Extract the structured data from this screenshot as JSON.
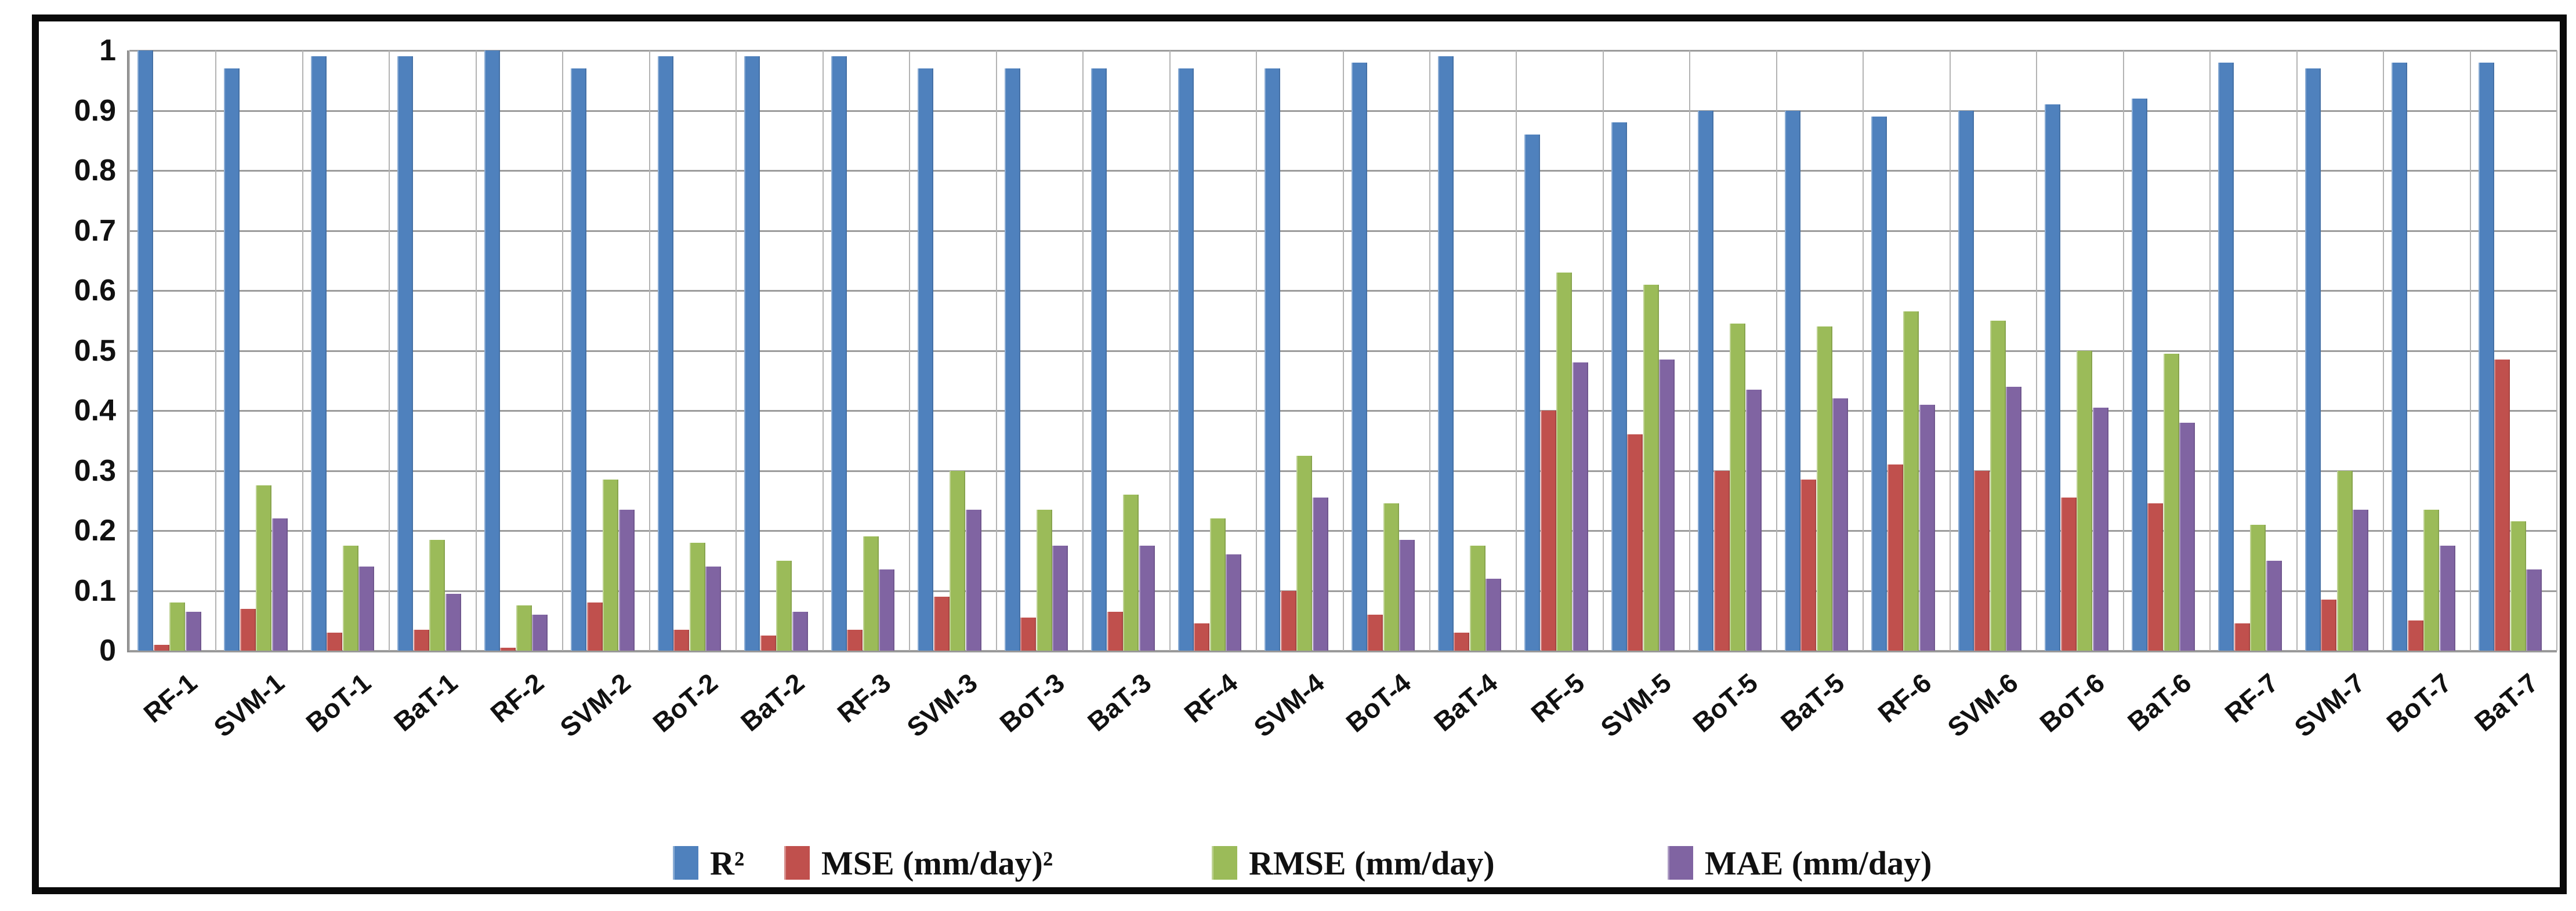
{
  "figure": {
    "background": "#ffffff",
    "border_color": "#0a0a0a",
    "gridline_color": "#9c9c9c",
    "axis_color": "#8c8c8c"
  },
  "chart_data": {
    "type": "bar",
    "title": "",
    "xlabel": "",
    "ylabel": "",
    "ylim": [
      0,
      1
    ],
    "grid": true,
    "legend_position": "bottom",
    "yticks": [
      "0",
      "0.1",
      "0.2",
      "0.3",
      "0.4",
      "0.5",
      "0.6",
      "0.7",
      "0.8",
      "0.9",
      "1"
    ],
    "categories": [
      "RF-1",
      "SVM-1",
      "BoT-1",
      "BaT-1",
      "RF-2",
      "SVM-2",
      "BoT-2",
      "BaT-2",
      "RF-3",
      "SVM-3",
      "BoT-3",
      "BaT-3",
      "RF-4",
      "SVM-4",
      "BoT-4",
      "BaT-4",
      "RF-5",
      "SVM-5",
      "BoT-5",
      "BaT-5",
      "RF-6",
      "SVM-6",
      "BoT-6",
      "BaT-6",
      "RF-7",
      "SVM-7",
      "BoT-7",
      "BaT-7"
    ],
    "series": [
      {
        "name": "R²",
        "color": "#4f81bd",
        "values": [
          1.0,
          0.97,
          0.99,
          0.99,
          1.0,
          0.97,
          0.99,
          0.99,
          0.99,
          0.97,
          0.97,
          0.97,
          0.97,
          0.97,
          0.98,
          0.99,
          0.86,
          0.88,
          0.9,
          0.9,
          0.89,
          0.9,
          0.91,
          0.92,
          0.98,
          0.97,
          0.98,
          0.98
        ]
      },
      {
        "name": "MSE (mm/day)²",
        "color": "#c0504d",
        "values": [
          0.01,
          0.07,
          0.03,
          0.035,
          0.005,
          0.08,
          0.035,
          0.025,
          0.035,
          0.09,
          0.055,
          0.065,
          0.045,
          0.1,
          0.06,
          0.03,
          0.4,
          0.36,
          0.3,
          0.285,
          0.31,
          0.3,
          0.255,
          0.245,
          0.045,
          0.085,
          0.05,
          0.485
        ]
      },
      {
        "name": "RMSE (mm/day)",
        "color": "#9bbb59",
        "values": [
          0.08,
          0.275,
          0.175,
          0.185,
          0.075,
          0.285,
          0.18,
          0.15,
          0.19,
          0.3,
          0.235,
          0.26,
          0.22,
          0.325,
          0.245,
          0.175,
          0.63,
          0.61,
          0.545,
          0.54,
          0.565,
          0.55,
          0.5,
          0.495,
          0.21,
          0.3,
          0.235,
          0.215
        ]
      },
      {
        "name": "MAE (mm/day)",
        "color": "#8064a2",
        "values": [
          0.065,
          0.22,
          0.14,
          0.095,
          0.06,
          0.235,
          0.14,
          0.065,
          0.135,
          0.235,
          0.175,
          0.175,
          0.16,
          0.255,
          0.185,
          0.12,
          0.48,
          0.485,
          0.435,
          0.42,
          0.41,
          0.44,
          0.405,
          0.38,
          0.15,
          0.235,
          0.175,
          0.135
        ]
      }
    ],
    "legend_x_positions": [
      1160,
      1352,
      2089,
      2875
    ]
  }
}
